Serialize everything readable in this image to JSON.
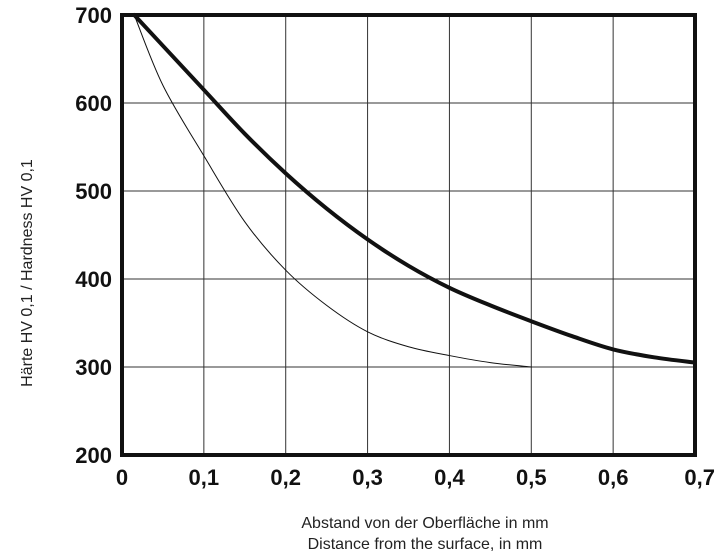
{
  "chart_data": {
    "type": "line",
    "xlabel": [
      "Abstand von der Oberfläche in mm",
      "Distance from the surface, in mm"
    ],
    "ylabel": "Härte HV 0,1 / Hardness HV 0,1",
    "xlim": [
      0,
      0.7
    ],
    "ylim": [
      200,
      700
    ],
    "x_ticks": [
      0,
      0.1,
      0.2,
      0.3,
      0.4,
      0.5,
      0.6,
      0.7
    ],
    "x_tick_labels": [
      "0",
      "0,1",
      "0,2",
      "0,3",
      "0,4",
      "0,5",
      "0,6",
      "0,7"
    ],
    "y_ticks": [
      200,
      300,
      400,
      500,
      600,
      700
    ],
    "y_tick_labels": [
      "200",
      "300",
      "400",
      "500",
      "600",
      "700"
    ],
    "grid": true,
    "series": [
      {
        "style": "thick",
        "x": [
          0.015,
          0.05,
          0.1,
          0.15,
          0.2,
          0.25,
          0.3,
          0.35,
          0.4,
          0.45,
          0.5,
          0.55,
          0.6,
          0.65,
          0.7
        ],
        "y": [
          700,
          665,
          615,
          565,
          520,
          480,
          445,
          415,
          390,
          370,
          352,
          335,
          320,
          311,
          305
        ]
      },
      {
        "style": "thin",
        "x": [
          0.015,
          0.05,
          0.1,
          0.15,
          0.2,
          0.25,
          0.3,
          0.35,
          0.4,
          0.45,
          0.5
        ],
        "y": [
          700,
          620,
          540,
          465,
          410,
          370,
          340,
          323,
          313,
          305,
          300
        ]
      }
    ]
  }
}
